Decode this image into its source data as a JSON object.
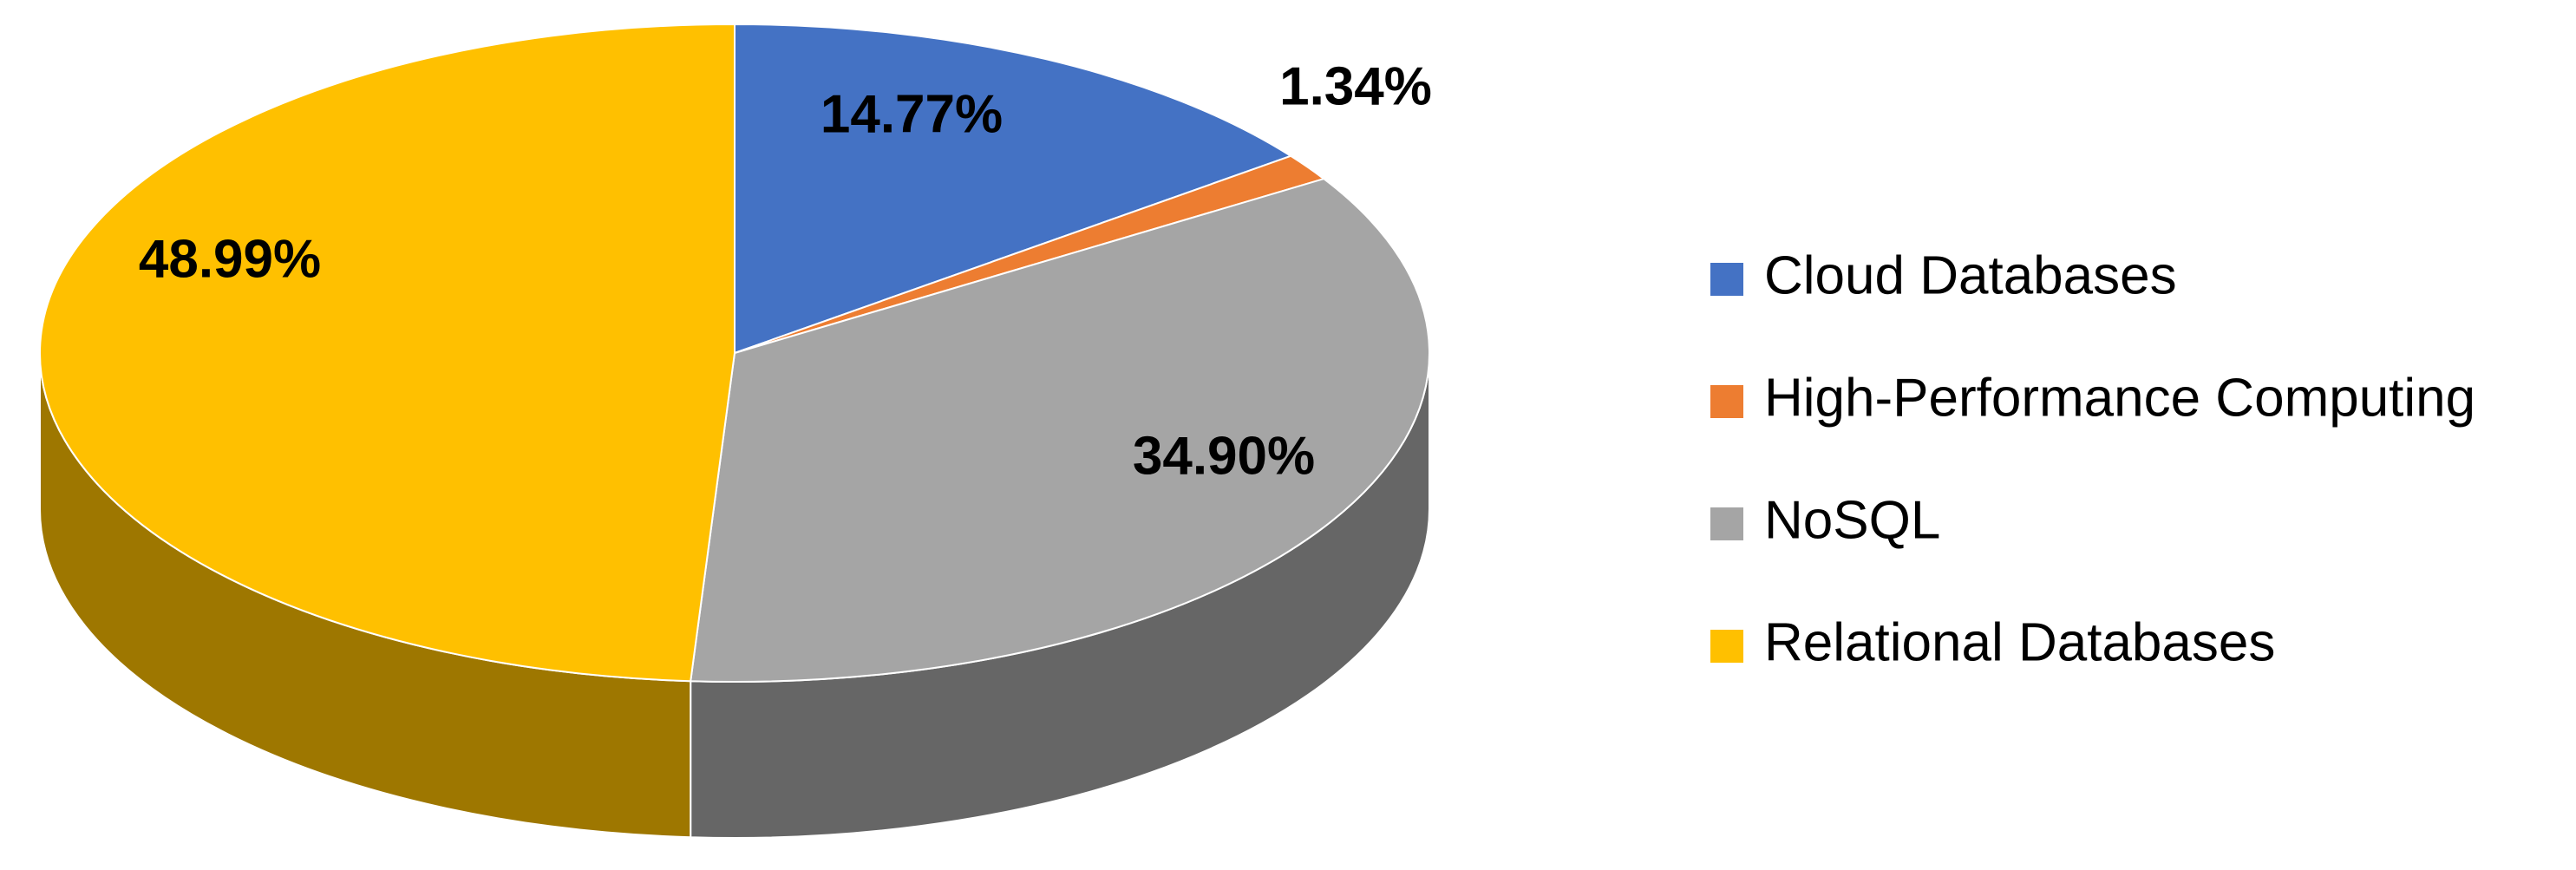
{
  "chart_data": {
    "type": "pie",
    "categories": [
      "Cloud Databases",
      "High-Performance Computing",
      "NoSQL",
      "Relational Databases"
    ],
    "values": [
      14.77,
      1.34,
      34.9,
      48.99
    ],
    "value_labels": [
      "14.77%",
      "1.34%",
      "34.90%",
      "48.99%"
    ],
    "colors": [
      "#4472c4",
      "#ed7d31",
      "#a5a5a5",
      "#ffc000"
    ],
    "legend": "right"
  }
}
